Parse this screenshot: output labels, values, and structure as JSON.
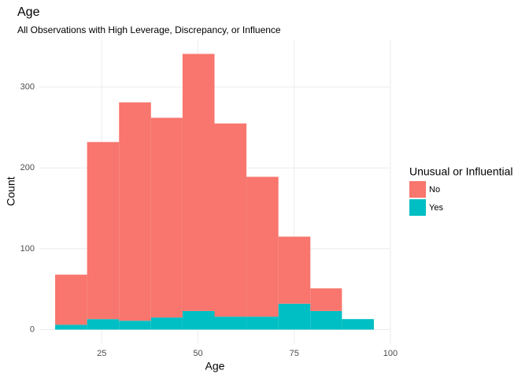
{
  "chart_data": {
    "type": "histogram",
    "title": "Age",
    "subtitle": "All Observations with High Leverage, Discrepancy, or Influence",
    "x_label": "Age",
    "y_label": "Count",
    "legend_title": "Unusual or Influential",
    "bins": [
      12.9,
      21.2,
      29.5,
      37.8,
      46.0,
      54.3,
      62.6,
      70.9,
      79.2,
      87.4,
      95.7
    ],
    "series": [
      {
        "name": "No",
        "color": "#F8766D",
        "values": [
          62,
          219,
          270,
          247,
          318,
          239,
          173,
          83,
          28,
          0
        ]
      },
      {
        "name": "Yes",
        "color": "#00BFC4",
        "values": [
          6,
          13,
          11,
          15,
          23,
          16,
          16,
          32,
          23,
          13
        ]
      }
    ],
    "xlim": [
      8.8,
      99.8
    ],
    "ylim": [
      -17,
      358
    ],
    "xticks": [
      25,
      50,
      75,
      100
    ],
    "yticks": [
      0,
      100,
      200,
      300
    ],
    "grid": true
  }
}
